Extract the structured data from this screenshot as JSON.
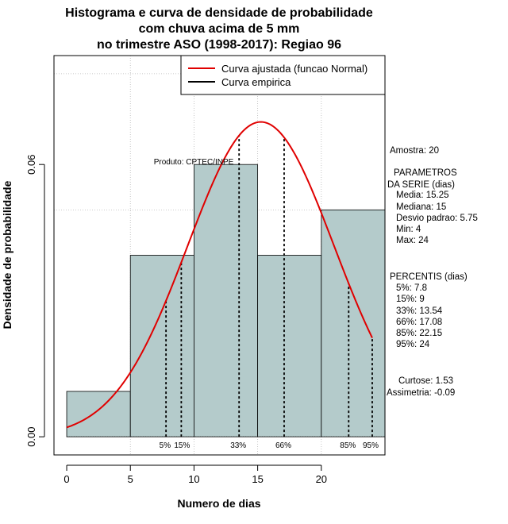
{
  "chart_data": {
    "type": "bar",
    "title_lines": [
      "Histograma e curva de densidade de probabilidade",
      "com chuva acima de 5 mm",
      "no trimestre ASO (1998-2017): Regiao 96"
    ],
    "xlabel": "Numero de dias",
    "ylabel": "Densidade de probabilidade",
    "xlim": [
      -1,
      25
    ],
    "ylim": [
      -0.004,
      0.084
    ],
    "x_ticks": [
      0,
      5,
      10,
      15,
      20
    ],
    "y_ticks": [
      0.0,
      0.06
    ],
    "x_tick_labels": [
      "0",
      "5",
      "10",
      "15",
      "20"
    ],
    "y_tick_labels": [
      "0.00",
      "0.06"
    ],
    "grid": true,
    "grid_x": [
      5,
      10,
      15,
      20
    ],
    "grid_y": [
      0.05,
      0.08
    ],
    "bins": [
      {
        "start": 0,
        "end": 5,
        "density": 0.01
      },
      {
        "start": 5,
        "end": 10,
        "density": 0.04
      },
      {
        "start": 10,
        "end": 15,
        "density": 0.06
      },
      {
        "start": 15,
        "end": 20,
        "density": 0.04
      },
      {
        "start": 20,
        "end": 25,
        "density": 0.05
      }
    ],
    "bar_color": "#b4cbcb",
    "normal_curve": {
      "mean": 15.25,
      "sd": 5.75,
      "x_range": [
        0,
        24
      ],
      "color": "#e00000"
    },
    "percentiles": [
      {
        "label": "5%",
        "value": 7.8
      },
      {
        "label": "15%",
        "value": 9
      },
      {
        "label": "33%",
        "value": 13.54
      },
      {
        "label": "66%",
        "value": 17.08
      },
      {
        "label": "85%",
        "value": 22.15
      },
      {
        "label": "95%",
        "value": 24
      }
    ],
    "legend": {
      "position": "top-right",
      "entries": [
        {
          "label": "Curva ajustada (funcao Normal)",
          "color": "#e00000"
        },
        {
          "label": "Curva empirica",
          "color": "#000000"
        }
      ]
    },
    "annotation": "Produto: CPTEC/INPE"
  },
  "stats": {
    "amostra": "Amostra: 20",
    "params_title_1": "PARAMETROS",
    "params_title_2": "DA SERIE (dias)",
    "media": "Media: 15.25",
    "mediana": "Mediana: 15",
    "desvio": "Desvio padrao: 5.75",
    "min": "Min: 4",
    "max": "Max: 24",
    "percentis_title": "PERCENTIS (dias)",
    "p5": "5%: 7.8",
    "p15": "15%: 9",
    "p33": "33%: 13.54",
    "p66": "66%: 17.08",
    "p85": "85%: 22.15",
    "p95": "95%: 24",
    "curtose": "Curtose: 1.53",
    "assimetria": "Assimetria: -0.09"
  }
}
